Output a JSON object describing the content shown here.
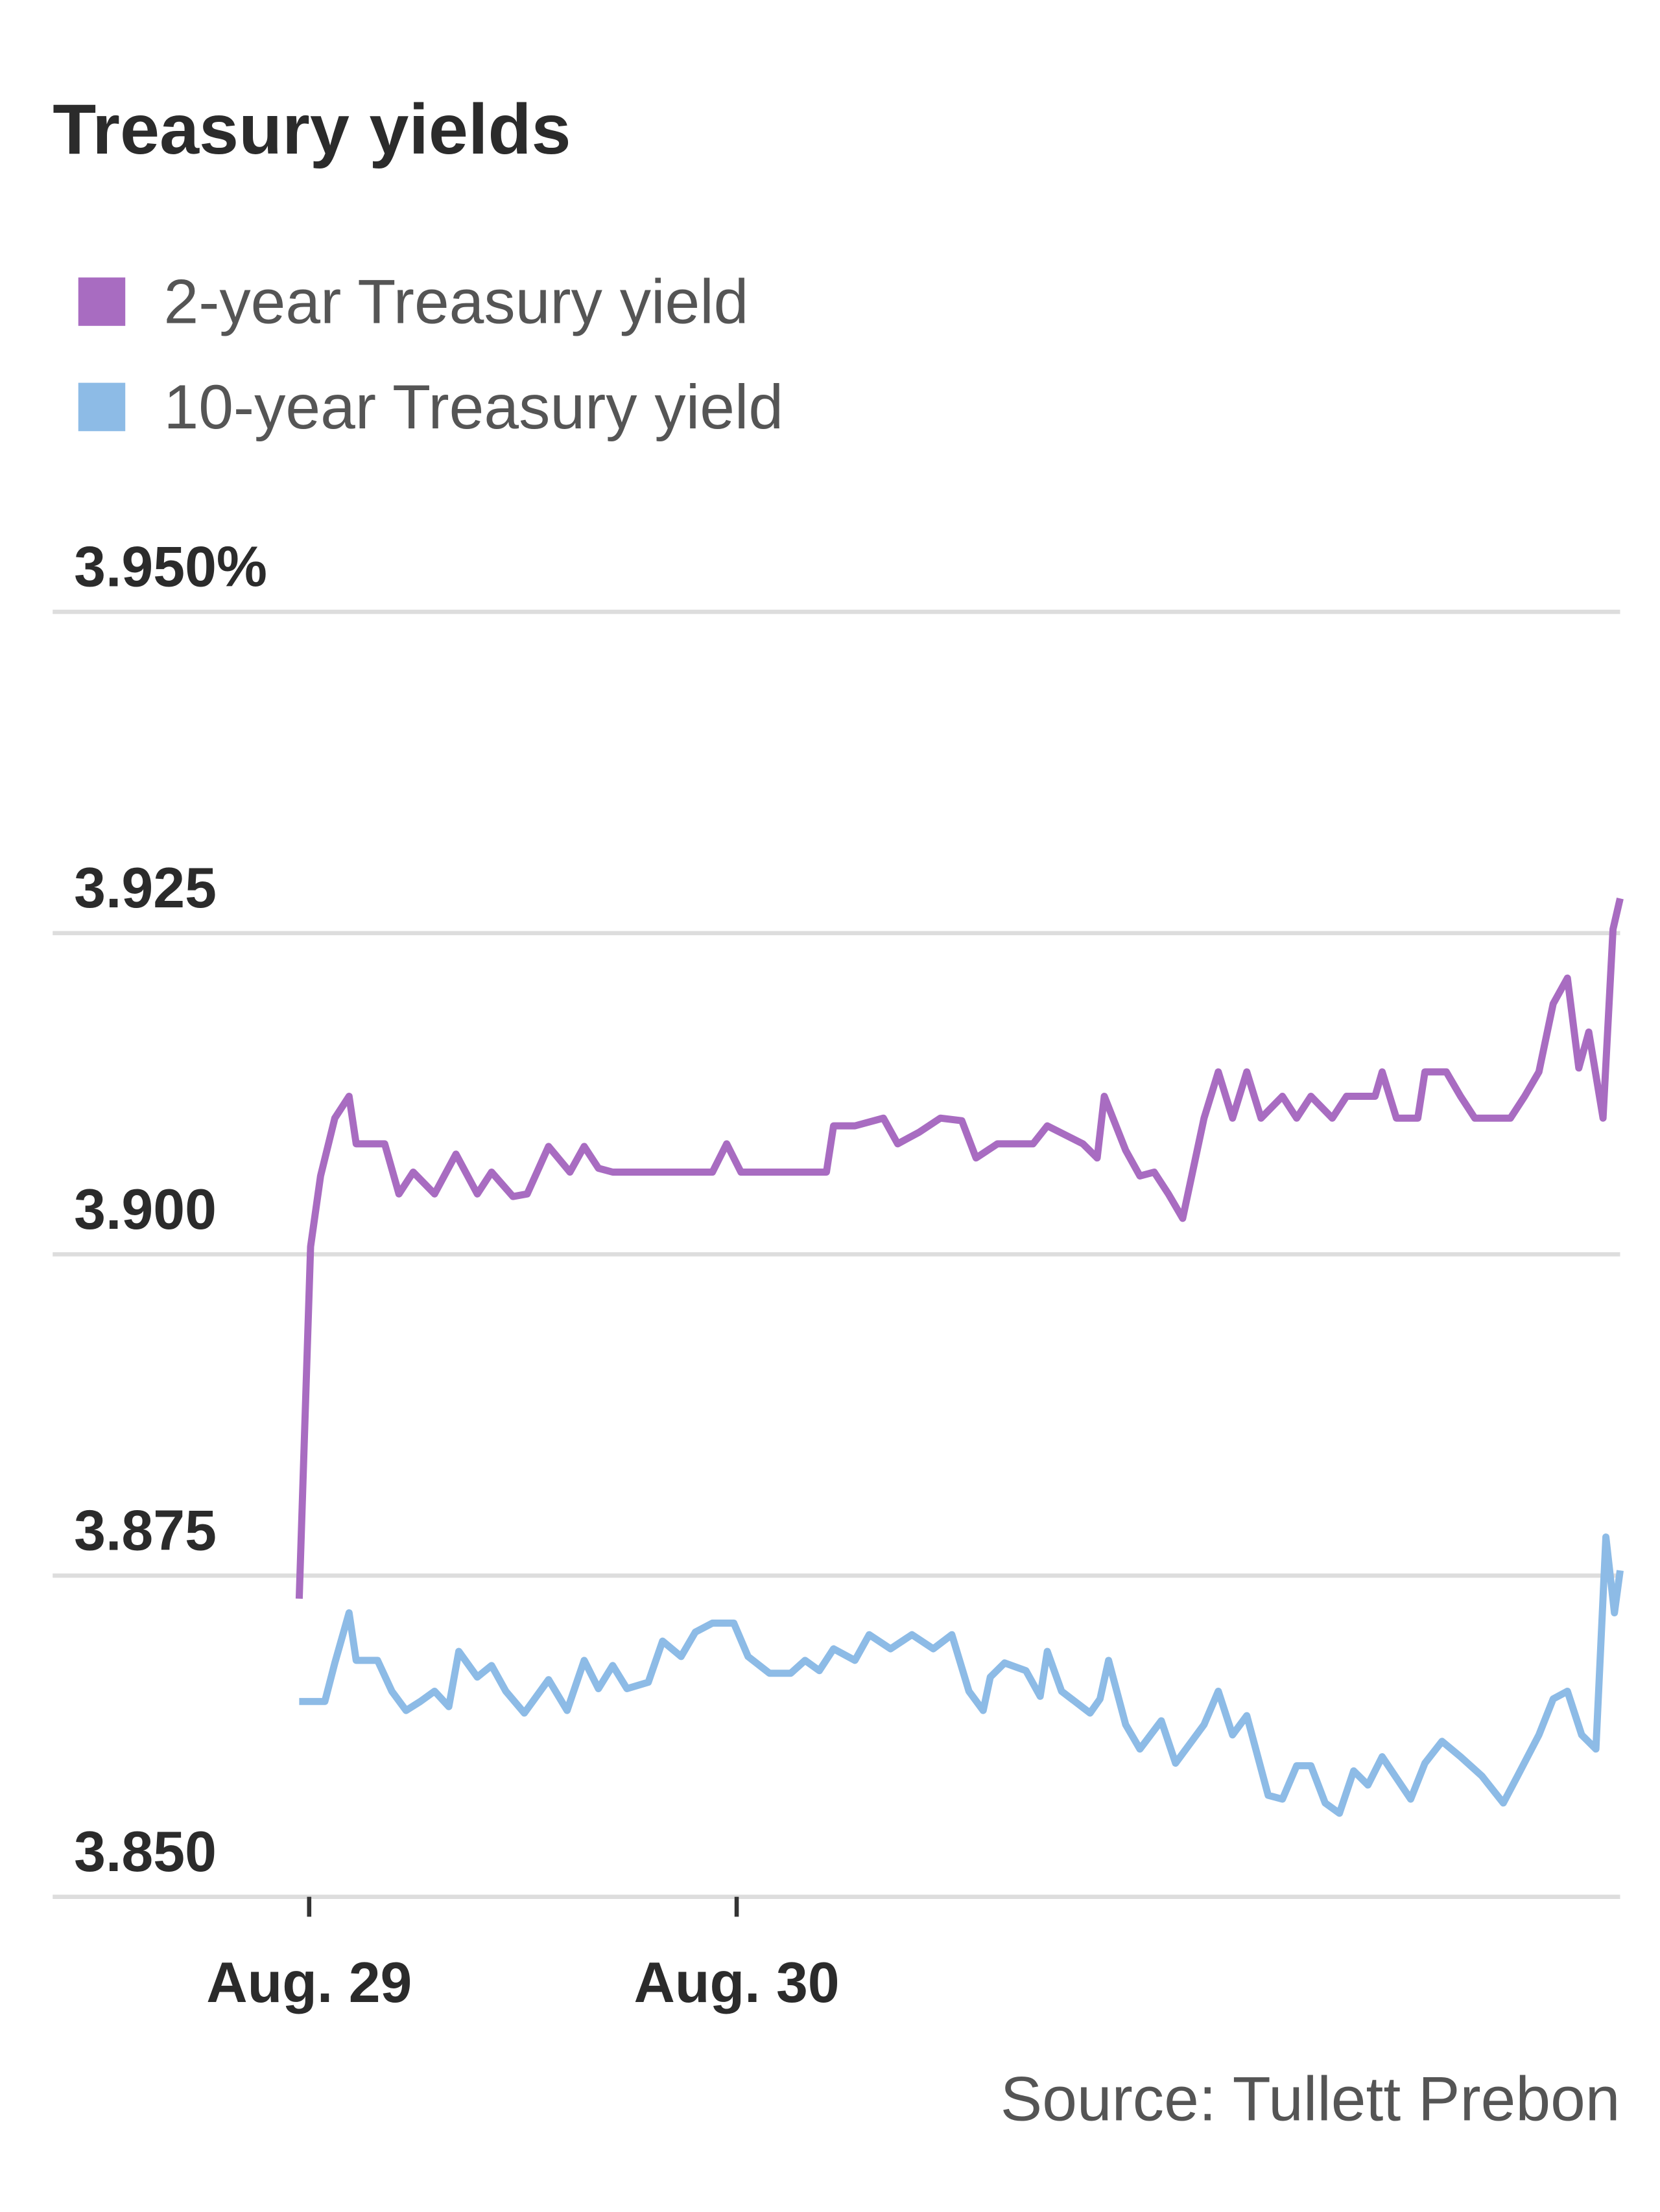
{
  "chart_data": {
    "type": "line",
    "title": "Treasury yields",
    "source": "Source: Tullett Prebon",
    "xlim": [
      0,
      110
    ],
    "xticks": [
      {
        "value": 18,
        "label": "Aug. 29"
      },
      {
        "value": 48,
        "label": "Aug. 30"
      }
    ],
    "ylim": [
      3.85,
      3.95
    ],
    "yticks": [
      {
        "value": 3.85,
        "label": "3.850"
      },
      3.875,
      {
        "value": 3.9,
        "label": "3.900"
      },
      3.925,
      {
        "value": 3.95,
        "label": "3.950%"
      }
    ],
    "grid": true,
    "series": [
      {
        "name": "2-year Treasury yield",
        "color": "#a86cc1",
        "x": [
          17.3,
          18.1,
          18.8,
          19.8,
          20.8,
          21.3,
          23.3,
          24.3,
          25.3,
          26.8,
          28.3,
          29.8,
          30.8,
          32.3,
          33.3,
          34.8,
          36.3,
          37.3,
          38.3,
          39.3,
          41.8,
          46.3,
          47.3,
          48.3,
          54.3,
          54.8,
          56.3,
          58.3,
          59.3,
          60.8,
          62.3,
          63.8,
          64.8,
          66.3,
          68.8,
          69.8,
          72.3,
          73.3,
          73.8,
          75.3,
          76.3,
          77.3,
          78.3,
          79.3,
          80.8,
          81.8,
          82.8,
          83.8,
          84.8,
          86.3,
          87.3,
          88.3,
          89.8,
          90.8,
          92.8,
          93.3,
          94.3,
          95.8,
          96.3,
          97.8,
          98.8,
          99.8,
          102.3,
          103.3,
          104.3,
          105.3,
          106.3,
          107.1,
          107.8,
          108.8,
          109.5,
          110
        ],
        "values": [
          3.8732,
          3.9006,
          3.9061,
          3.9106,
          3.9123,
          3.9086,
          3.9086,
          3.9047,
          3.9064,
          3.9047,
          3.9078,
          3.9047,
          3.9064,
          3.9045,
          3.9047,
          3.9084,
          3.9064,
          3.9084,
          3.9067,
          3.9064,
          3.9064,
          3.9064,
          3.9086,
          3.9064,
          3.9064,
          3.91,
          3.91,
          3.9106,
          3.9086,
          3.9095,
          3.9106,
          3.9104,
          3.9075,
          3.9086,
          3.9086,
          3.91,
          3.9086,
          3.9075,
          3.9123,
          3.9081,
          3.9061,
          3.9064,
          3.9047,
          3.9028,
          3.9106,
          3.9142,
          3.9106,
          3.9142,
          3.9106,
          3.9123,
          3.9106,
          3.9123,
          3.9106,
          3.9123,
          3.9123,
          3.9142,
          3.9106,
          3.9106,
          3.9142,
          3.9142,
          3.9123,
          3.9106,
          3.9106,
          3.9123,
          3.9142,
          3.9195,
          3.9215,
          3.9145,
          3.9173,
          3.9106,
          3.9253,
          3.9277
        ]
      },
      {
        "name": "10-year Treasury yield",
        "color": "#8dbbe6",
        "x": [
          17.3,
          19.1,
          19.8,
          20.8,
          21.3,
          22.8,
          23.8,
          24.8,
          25.8,
          26.8,
          27.8,
          28.5,
          29.8,
          30.8,
          31.8,
          33.1,
          34.8,
          36.1,
          37.3,
          38.3,
          39.3,
          40.3,
          41.8,
          42.8,
          44.1,
          45.1,
          46.3,
          47.8,
          48.8,
          50.3,
          51.8,
          52.8,
          53.8,
          54.8,
          56.3,
          57.3,
          58.8,
          60.3,
          61.8,
          63.1,
          64.3,
          65.3,
          65.8,
          66.8,
          68.3,
          69.3,
          69.8,
          70.8,
          72.8,
          73.5,
          74.1,
          75.3,
          76.3,
          77.8,
          78.8,
          80.8,
          81.8,
          82.8,
          83.8,
          85.3,
          86.3,
          87.3,
          88.3,
          89.3,
          90.3,
          91.3,
          92.3,
          93.3,
          95.3,
          96.3,
          97.5,
          98.8,
          100.3,
          101.8,
          102.8,
          104.3,
          105.3,
          106.3,
          107.3,
          108.3,
          109,
          109.6,
          110
        ],
        "values": [
          3.8652,
          3.8652,
          3.8682,
          3.8721,
          3.8684,
          3.8684,
          3.866,
          3.8645,
          3.8652,
          3.866,
          3.8648,
          3.8691,
          3.8671,
          3.868,
          3.866,
          3.8643,
          3.8669,
          3.8645,
          3.8684,
          3.8662,
          3.868,
          3.8662,
          3.8667,
          3.8699,
          3.8687,
          3.8706,
          3.8713,
          3.8713,
          3.8687,
          3.8674,
          3.8674,
          3.8684,
          3.8676,
          3.8693,
          3.8684,
          3.8704,
          3.8693,
          3.8704,
          3.8693,
          3.8704,
          3.866,
          3.8645,
          3.8671,
          3.8682,
          3.8676,
          3.8656,
          3.8691,
          3.866,
          3.8643,
          3.8654,
          3.8684,
          3.8634,
          3.8615,
          3.8637,
          3.8604,
          3.8634,
          3.866,
          3.8626,
          3.8641,
          3.8579,
          3.8576,
          3.8602,
          3.8602,
          3.8573,
          3.8565,
          3.8598,
          3.8587,
          3.8609,
          3.8576,
          3.8604,
          3.8621,
          3.8609,
          3.8594,
          3.8573,
          3.8594,
          3.8626,
          3.8654,
          3.866,
          3.8626,
          3.8615,
          3.878,
          3.8721,
          3.8754
        ]
      }
    ]
  }
}
